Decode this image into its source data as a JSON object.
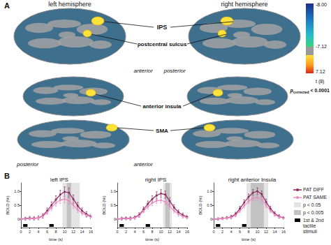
{
  "figure": {
    "panel_labels": [
      "A",
      "B"
    ],
    "hemispheres": [
      "left hemisphere",
      "right hemisphere"
    ],
    "regions": [
      "IPS",
      "postcentral sulcus",
      "anterior insula",
      "SMA"
    ],
    "directions": [
      [
        "anterior",
        "posterior"
      ],
      [
        "posterior",
        "anterior"
      ]
    ],
    "colorbar": {
      "ticks": [
        {
          "value": -8,
          "label": "-8.00"
        },
        {
          "value": -7.12,
          "label": "-7.12"
        },
        {
          "value": 7.12,
          "label": "7.12"
        }
      ],
      "label": "t (8)",
      "threshold": {
        "symbol": "p",
        "subscript": "corrected",
        "text": "< 0.0001"
      }
    }
  },
  "chart_data": [
    {
      "type": "line",
      "title": "left IPS",
      "xlabel": "time (s)",
      "ylabel": "BOLD (%)",
      "x": [
        0,
        1,
        2,
        3,
        4,
        5,
        6,
        7,
        8,
        9,
        10,
        11,
        12,
        13,
        14,
        15,
        16
      ],
      "xlim": [
        0,
        16
      ],
      "xticks": [
        0,
        2,
        4,
        6,
        8,
        10,
        12,
        14,
        16
      ],
      "ylim": [
        -0.3,
        1.3
      ],
      "yticks": [
        0,
        0.5,
        {
          "value": 1,
          "label": "1.0"
        }
      ],
      "series": [
        {
          "name": "PAT DIFF",
          "color": "#8e2a62",
          "marker": "circle",
          "values": [
            0.0,
            0.02,
            0.04,
            0.03,
            0.05,
            0.12,
            0.3,
            0.5,
            0.7,
            0.88,
            0.98,
            0.95,
            0.72,
            0.48,
            0.3,
            0.18,
            0.1
          ],
          "errors": [
            0.05,
            0.05,
            0.06,
            0.06,
            0.07,
            0.08,
            0.1,
            0.12,
            0.14,
            0.16,
            0.18,
            0.17,
            0.15,
            0.12,
            0.1,
            0.09,
            0.08
          ]
        },
        {
          "name": "PAT SAME",
          "color": "#ea8cc4",
          "marker": "circle",
          "values": [
            0.0,
            0.01,
            0.03,
            0.02,
            0.04,
            0.1,
            0.25,
            0.42,
            0.58,
            0.68,
            0.72,
            0.66,
            0.5,
            0.34,
            0.22,
            0.14,
            0.08
          ],
          "errors": [
            0.04,
            0.04,
            0.05,
            0.05,
            0.06,
            0.07,
            0.08,
            0.1,
            0.11,
            0.12,
            0.13,
            0.12,
            0.11,
            0.1,
            0.08,
            0.07,
            0.06
          ]
        }
      ],
      "shading": [
        {
          "name": "p < 0.05",
          "color": "#e4e4e4",
          "from": 9.5,
          "to": 13.5
        },
        {
          "name": "p < 0.005",
          "color": "#c2c2c2",
          "from": 10.5,
          "to": 11.5
        }
      ],
      "stimuli": {
        "name": "1st & 2nd tactile stimuli",
        "color": "#000000",
        "intervals": [
          [
            0.5,
            1.5
          ],
          [
            6.5,
            7.5
          ]
        ]
      }
    },
    {
      "type": "line",
      "title": "right IPS",
      "xlabel": "time (s)",
      "ylabel": "BOLD (%)",
      "x": [
        0,
        1,
        2,
        3,
        4,
        5,
        6,
        7,
        8,
        9,
        10,
        11,
        12,
        13,
        14,
        15,
        16
      ],
      "xlim": [
        0,
        16
      ],
      "xticks": [
        0,
        2,
        4,
        6,
        8,
        10,
        12,
        14,
        16
      ],
      "ylim": [
        -0.3,
        1.3
      ],
      "yticks": [
        0,
        0.5,
        {
          "value": 1,
          "label": "1.0"
        }
      ],
      "series": [
        {
          "name": "PAT DIFF",
          "color": "#8e2a62",
          "marker": "circle",
          "values": [
            0.0,
            0.02,
            0.03,
            0.03,
            0.06,
            0.15,
            0.35,
            0.55,
            0.72,
            0.85,
            0.92,
            0.88,
            0.65,
            0.42,
            0.25,
            0.15,
            0.08
          ],
          "errors": [
            0.04,
            0.05,
            0.05,
            0.06,
            0.06,
            0.08,
            0.09,
            0.1,
            0.12,
            0.13,
            0.14,
            0.13,
            0.12,
            0.1,
            0.08,
            0.07,
            0.06
          ]
        },
        {
          "name": "PAT SAME",
          "color": "#ea8cc4",
          "marker": "circle",
          "values": [
            0.0,
            0.01,
            0.02,
            0.02,
            0.05,
            0.12,
            0.3,
            0.45,
            0.58,
            0.66,
            0.68,
            0.62,
            0.46,
            0.3,
            0.18,
            0.1,
            0.05
          ],
          "errors": [
            0.04,
            0.04,
            0.04,
            0.05,
            0.05,
            0.06,
            0.07,
            0.08,
            0.09,
            0.1,
            0.1,
            0.1,
            0.09,
            0.08,
            0.07,
            0.06,
            0.05
          ]
        }
      ],
      "shading": [
        {
          "name": "p < 0.05",
          "color": "#e4e4e4",
          "from": 10.5,
          "to": 12.5
        },
        {
          "name": "p < 0.005",
          "color": "#c2c2c2",
          "from": 11,
          "to": 12
        }
      ],
      "stimuli": {
        "name": "1st & 2nd tactile stimuli",
        "color": "#000000",
        "intervals": [
          [
            0.5,
            1.5
          ],
          [
            6.5,
            7.5
          ]
        ]
      }
    },
    {
      "type": "line",
      "title": "right anterior Insula",
      "xlabel": "time (s)",
      "ylabel": "BOLD (%)",
      "x": [
        0,
        1,
        2,
        3,
        4,
        5,
        6,
        7,
        8,
        9,
        10,
        11,
        12,
        13,
        14,
        15,
        16
      ],
      "xlim": [
        0,
        16
      ],
      "xticks": [
        0,
        2,
        4,
        6,
        8,
        10,
        12,
        14,
        16
      ],
      "ylim": [
        -0.3,
        1.3
      ],
      "yticks": [
        0,
        0.5,
        {
          "value": 1,
          "label": "1.0"
        }
      ],
      "series": [
        {
          "name": "PAT DIFF",
          "color": "#8e2a62",
          "marker": "circle",
          "values": [
            0.0,
            0.01,
            0.03,
            0.05,
            0.08,
            0.18,
            0.38,
            0.6,
            0.8,
            0.95,
            1.0,
            0.9,
            0.62,
            0.38,
            0.2,
            0.1,
            0.05
          ],
          "errors": [
            0.03,
            0.04,
            0.04,
            0.05,
            0.06,
            0.07,
            0.08,
            0.09,
            0.1,
            0.11,
            0.12,
            0.11,
            0.1,
            0.08,
            0.07,
            0.06,
            0.05
          ]
        },
        {
          "name": "PAT SAME",
          "color": "#ea8cc4",
          "marker": "circle",
          "values": [
            0.0,
            0.01,
            0.02,
            0.04,
            0.06,
            0.14,
            0.3,
            0.48,
            0.64,
            0.75,
            0.78,
            0.7,
            0.5,
            0.3,
            0.16,
            0.08,
            0.03
          ],
          "errors": [
            0.03,
            0.03,
            0.04,
            0.04,
            0.05,
            0.06,
            0.07,
            0.08,
            0.08,
            0.09,
            0.1,
            0.09,
            0.08,
            0.07,
            0.06,
            0.05,
            0.04
          ]
        }
      ],
      "shading": [
        {
          "name": "p < 0.05",
          "color": "#e4e4e4",
          "from": 7.5,
          "to": 12.5
        },
        {
          "name": "p < 0.005",
          "color": "#c2c2c2",
          "from": 8.5,
          "to": 11.5
        }
      ],
      "stimuli": {
        "name": "1st & 2nd tactile stimuli",
        "color": "#000000",
        "intervals": [
          [
            0.5,
            1.5
          ],
          [
            6.5,
            7.5
          ]
        ]
      }
    }
  ]
}
